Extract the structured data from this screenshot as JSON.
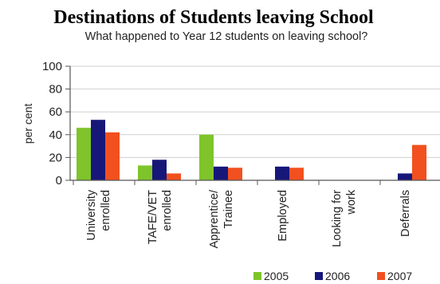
{
  "chart_data": {
    "type": "bar",
    "title": "Destinations of Students leaving School",
    "subtitle": "What happened to Year 12 students on leaving school?",
    "ylabel": "per cent",
    "xlabel": "",
    "ylim": [
      0,
      100
    ],
    "yticks": [
      0,
      20,
      40,
      60,
      80,
      100
    ],
    "grid": true,
    "legend_position": "bottom-right",
    "categories": [
      [
        "University",
        "enrolled"
      ],
      [
        "TAFE/VET",
        "enrolled"
      ],
      [
        "Apprentice/",
        "Trainee"
      ],
      [
        "Employed"
      ],
      [
        "Looking for",
        "work"
      ],
      [
        "Deferrals"
      ]
    ],
    "series": [
      {
        "name": "2005",
        "color": "#7fc42a",
        "values": [
          46,
          13,
          40,
          0,
          0,
          0
        ]
      },
      {
        "name": "2006",
        "color": "#17177a",
        "values": [
          53,
          18,
          12,
          12,
          0,
          6
        ]
      },
      {
        "name": "2007",
        "color": "#f2501e",
        "values": [
          42,
          6,
          11,
          11,
          0,
          31
        ]
      }
    ]
  }
}
